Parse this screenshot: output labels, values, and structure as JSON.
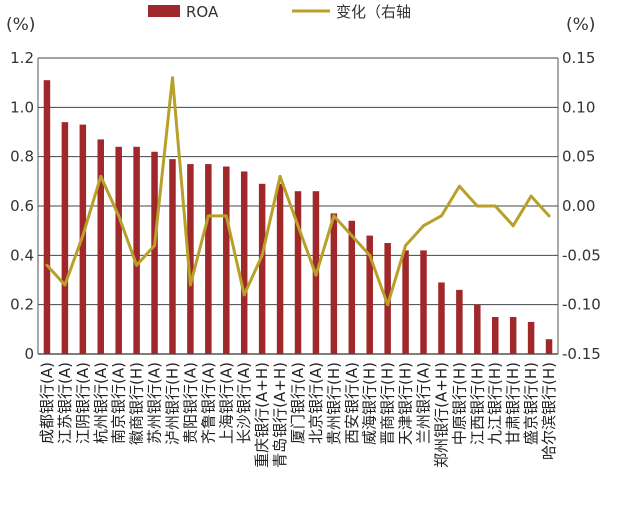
{
  "chart_data": {
    "type": "bar",
    "title": "",
    "left_axis_unit": "(%)",
    "right_axis_unit": "(%)",
    "left_ticks": [
      "1.2",
      "1.0",
      "0.8",
      "0.6",
      "0.4",
      "0.2",
      "0"
    ],
    "right_ticks": [
      "0.15",
      "0.10",
      "0.05",
      "0.00",
      "-0.05",
      "-0.10",
      "-0.15"
    ],
    "ylim_left": [
      0,
      1.2
    ],
    "ylim_right": [
      -0.15,
      0.15
    ],
    "grid": true,
    "legend_position": "top",
    "categories": [
      "成都银行(A)",
      "江苏银行(A)",
      "江阴银行(A)",
      "杭州银行(A)",
      "南京银行(A)",
      "徽商银行(H)",
      "苏州银行(A)",
      "泸州银行(H)",
      "贵阳银行(A)",
      "齐鲁银行(A)",
      "上海银行(A)",
      "长沙银行(A)",
      "重庆银行(A+H)",
      "青岛银行(A+H)",
      "厦门银行(A)",
      "北京银行(A)",
      "贵州银行(H)",
      "西安银行(A)",
      "威海银行(H)",
      "晋商银行(H)",
      "天津银行(H)",
      "兰州银行(A)",
      "郑州银行(A+H)",
      "中原银行(H)",
      "江西银行(H)",
      "九江银行(H)",
      "甘肃银行(H)",
      "盛京银行(H)",
      "哈尔滨银行(H)"
    ],
    "series": [
      {
        "name": "ROA",
        "axis": "left",
        "values": [
          1.11,
          0.94,
          0.93,
          0.87,
          0.84,
          0.84,
          0.82,
          0.79,
          0.77,
          0.77,
          0.76,
          0.74,
          0.69,
          0.69,
          0.66,
          0.66,
          0.57,
          0.54,
          0.48,
          0.45,
          0.42,
          0.42,
          0.29,
          0.26,
          0.2,
          0.15,
          0.15,
          0.13,
          0.06
        ],
        "color": "#a0282a"
      },
      {
        "name": "变化（右轴",
        "axis": "right",
        "values": [
          -0.06,
          -0.08,
          -0.03,
          0.03,
          -0.01,
          -0.06,
          -0.04,
          0.13,
          -0.08,
          -0.01,
          -0.01,
          -0.09,
          -0.05,
          0.03,
          -0.02,
          -0.07,
          -0.01,
          -0.03,
          -0.05,
          -0.1,
          -0.04,
          -0.02,
          -0.01,
          0.02,
          0.0,
          0.0,
          -0.02,
          0.01,
          -0.01
        ],
        "color": "#b8a02a"
      }
    ]
  }
}
